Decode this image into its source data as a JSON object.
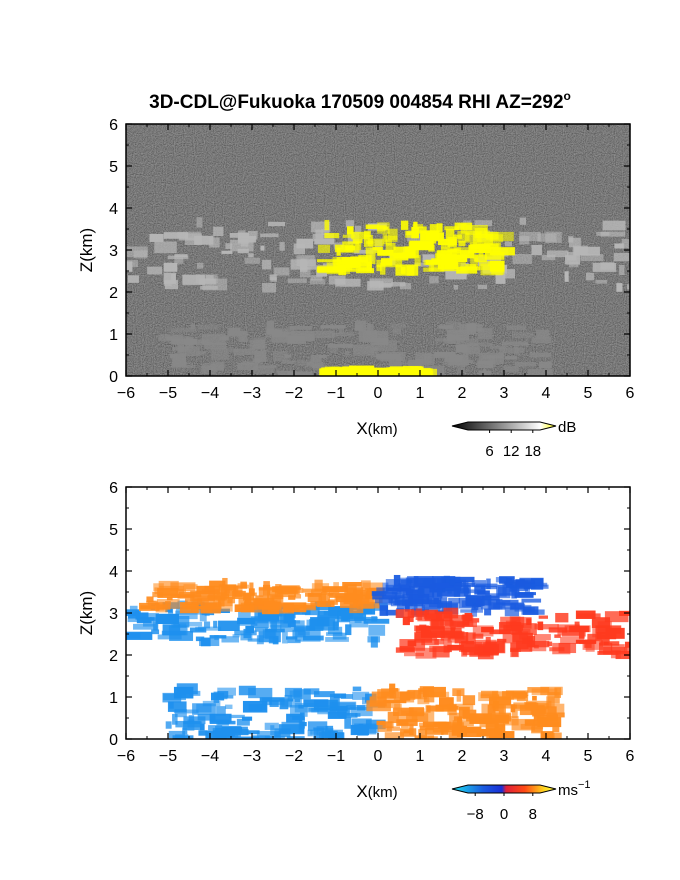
{
  "figure": {
    "title": "3D-CDL@Fukuoka 170509 004854 RHI AZ=292",
    "title_degree": "o"
  },
  "chart_data": [
    {
      "type": "heatmap",
      "panel": "reflectivity",
      "xlabel_main": "X",
      "xlabel_unit": "(km)",
      "ylabel": "Z(km)",
      "xlim": [
        -6,
        6
      ],
      "ylim": [
        0,
        6
      ],
      "x_ticks": [
        -6,
        -5,
        -4,
        -3,
        -2,
        -1,
        0,
        1,
        2,
        3,
        4,
        5,
        6
      ],
      "y_ticks": [
        0,
        1,
        2,
        3,
        4,
        5,
        6
      ],
      "colorbar": {
        "unit": "dB",
        "ticks": [
          6,
          12,
          18
        ],
        "range": [
          0,
          20
        ],
        "colors": [
          "#000000",
          "#ffffff",
          "#ffff00"
        ]
      },
      "layers": [
        {
          "feature": "upper cloud layer",
          "x_range": [
            -6,
            6
          ],
          "z_range": [
            2.1,
            3.7
          ],
          "dB": 12
        },
        {
          "feature": "strong echo",
          "x_range": [
            -1.3,
            3.0
          ],
          "z_range": [
            2.5,
            3.6
          ],
          "dB": 19
        },
        {
          "feature": "near-surface echo",
          "x_range": [
            -5.0,
            4.0
          ],
          "z_range": [
            0,
            1.2
          ],
          "dB": 8
        },
        {
          "feature": "surface strong echo",
          "x_range": [
            -1.2,
            1.2
          ],
          "z_range": [
            0,
            0.12
          ],
          "dB": 19
        }
      ]
    },
    {
      "type": "heatmap",
      "panel": "doppler velocity",
      "xlabel_main": "X",
      "xlabel_unit": "(km)",
      "ylabel": "Z(km)",
      "xlim": [
        -6,
        6
      ],
      "ylim": [
        0,
        6
      ],
      "x_ticks": [
        -6,
        -5,
        -4,
        -3,
        -2,
        -1,
        0,
        1,
        2,
        3,
        4,
        5,
        6
      ],
      "y_ticks": [
        0,
        1,
        2,
        3,
        4,
        5,
        6
      ],
      "colorbar": {
        "unit": "ms",
        "unit_exponent": "−1",
        "ticks": [
          "−8",
          "0",
          "8"
        ],
        "tick_values": [
          -8,
          0,
          8
        ],
        "range": [
          -10,
          10
        ],
        "colors": [
          "#1ee3f0",
          "#1a5be0",
          "#1a2fd6",
          "#e0203a",
          "#ff4a14",
          "#ffd21e",
          "#ffff40"
        ]
      },
      "layers": [
        {
          "feature": "upper layer west",
          "x_range": [
            -6,
            0
          ],
          "z_range": [
            2.3,
            3.2
          ],
          "velocity": -6
        },
        {
          "feature": "upper layer top west",
          "x_range": [
            -5.5,
            0
          ],
          "z_range": [
            3.1,
            3.7
          ],
          "velocity": 5
        },
        {
          "feature": "upper layer top east",
          "x_range": [
            0,
            3.8
          ],
          "z_range": [
            3.0,
            3.8
          ],
          "velocity": -7
        },
        {
          "feature": "upper layer east",
          "x_range": [
            0.5,
            6
          ],
          "z_range": [
            2.0,
            3.0
          ],
          "velocity": 3
        },
        {
          "feature": "lower layer west",
          "x_range": [
            -5.0,
            0
          ],
          "z_range": [
            0,
            1.2
          ],
          "velocity": -6
        },
        {
          "feature": "lower layer east",
          "x_range": [
            0,
            4.3
          ],
          "z_range": [
            0,
            1.2
          ],
          "velocity": 4
        }
      ]
    }
  ]
}
